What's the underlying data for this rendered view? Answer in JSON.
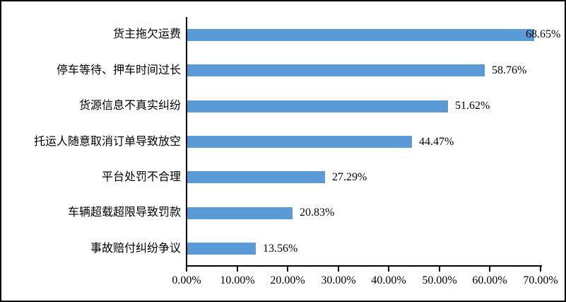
{
  "chart_data": {
    "type": "bar",
    "orientation": "horizontal",
    "title": "",
    "xlabel": "",
    "ylabel": "",
    "categories": [
      "货主拖欠运费",
      "停车等待、押车时间过长",
      "货源信息不真实纠纷",
      "托运人随意取消订单导致放空",
      "平台处罚不合理",
      "车辆超载超限导致罚款",
      "事故赔付纠纷争议"
    ],
    "values": [
      68.65,
      58.76,
      51.62,
      44.47,
      27.29,
      20.83,
      13.56
    ],
    "value_labels": [
      "68.65%",
      "58.76%",
      "51.62%",
      "44.47%",
      "27.29%",
      "20.83%",
      "13.56%"
    ],
    "xlim": [
      0,
      70
    ],
    "x_tick_values": [
      0,
      10,
      20,
      30,
      40,
      50,
      60,
      70
    ],
    "x_tick_labels": [
      "0.00%",
      "10.00%",
      "20.00%",
      "30.00%",
      "40.00%",
      "50.00%",
      "60.00%",
      "70.00%"
    ],
    "grid": false,
    "legend_position": "none",
    "data_label_position": "outside-end",
    "colors": {
      "bar_fill": "#5B9BD5",
      "axis": "#000000",
      "text": "#000000",
      "background": "#FFFFFF",
      "figure_border": "#000000"
    }
  }
}
